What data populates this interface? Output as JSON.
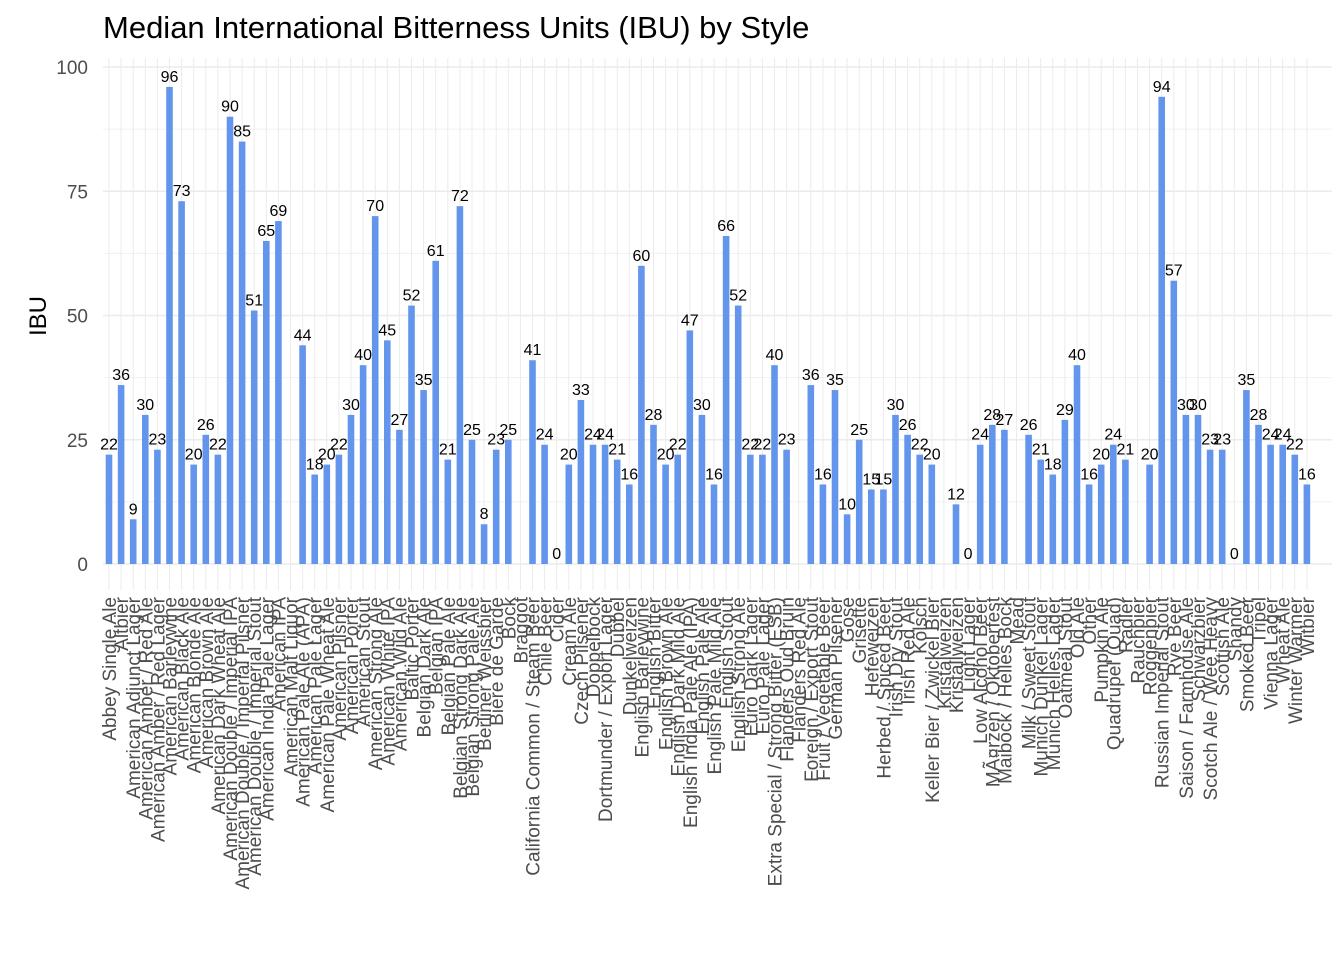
{
  "chart_data": {
    "type": "bar",
    "title": "Median International Bitterness Units (IBU) by Style",
    "xlabel": "",
    "ylabel": "IBU",
    "ylim": [
      0,
      100
    ],
    "yticks": [
      0,
      25,
      50,
      75,
      100
    ],
    "grid": true,
    "legend": "none",
    "bar_color": "#6495ED",
    "categories": [
      "Abbey Single Ale",
      "Altbier",
      "American Adjunct Lager",
      "American Amber / Red Ale",
      "American Amber / Red Lager",
      "American Barleywine",
      "American Black Ale",
      "American Blonde Ale",
      "American Brown Ale",
      "American Dark Wheat Ale",
      "American Double / Imperial IPA",
      "American Double / Imperial Pilsner",
      "American Double / Imperial Stout",
      "American India Pale Lager",
      "American IPA",
      "American Malt Liquor",
      "American Pale Ale (APA)",
      "American Pale Lager",
      "American Pale Wheat Ale",
      "American Pilsner",
      "American Porter",
      "American Stout",
      "American Strong Ale",
      "American White IPA",
      "American Wild Ale",
      "Baltic Porter",
      "Belgian Dark Ale",
      "Belgian IPA",
      "Belgian Pale Ale",
      "Belgian Strong Dark Ale",
      "Belgian Strong Pale Ale",
      "Berliner Weissbier",
      "Bière de Garde",
      "Bock",
      "Braggot",
      "California Common / Steam Beer",
      "Chile Beer",
      "Cider",
      "Cream Ale",
      "Czech Pilsener",
      "Doppelbock",
      "Dortmunder / Export Lager",
      "Dubbel",
      "Dunkelweizen",
      "English Barleywine",
      "English Bitter",
      "English Brown Ale",
      "English Dark Mild Ale",
      "English India Pale Ale (IPA)",
      "English Pale Ale",
      "English Pale Mild Ale",
      "English Stout",
      "English Strong Ale",
      "Euro Dark Lager",
      "Euro Pale Lager",
      "Extra Special / Strong Bitter (ESB)",
      "Flanders Oud Bruin",
      "Flanders Red Ale",
      "Foreign / Export Stout",
      "Fruit / Vegetable Beer",
      "German Pilsener",
      "Gose",
      "Grisette",
      "Hefeweizen",
      "Herbed / Spiced Beer",
      "Irish Dry Stout",
      "Irish Red Ale",
      "Kölsch",
      "Keller Bier / Zwickel Bier",
      "Kristalweizen",
      "Kristallweizen",
      "Light Lager",
      "Low Alcohol Beer",
      "MÃ¤rzen / Oktoberfest",
      "Maibock / Helles Bock",
      "Mead",
      "Milk / Sweet Stout",
      "Munich Dunkel Lager",
      "Munich Helles Lager",
      "Oatmeal Stout",
      "Old Ale",
      "Other",
      "Pumpkin Ale",
      "Quadrupel (Quad)",
      "Radler",
      "Rauchbier",
      "Roggenbier",
      "Russian Imperial Stout",
      "Rye Beer",
      "Saison / Farmhouse Ale",
      "Schwarzbier",
      "Scotch Ale / Wee Heavy",
      "Scottish Ale",
      "Shandy",
      "Smoked Beer",
      "Tripel",
      "Vienna Lager",
      "Wheat Ale",
      "Winter Warmer",
      "Witbier"
    ],
    "values": [
      22,
      36,
      9,
      30,
      23,
      96,
      73,
      20,
      26,
      22,
      90,
      85,
      51,
      65,
      69,
      null,
      44,
      18,
      20,
      22,
      30,
      40,
      70,
      45,
      27,
      52,
      35,
      61,
      21,
      72,
      25,
      8,
      23,
      25,
      null,
      41,
      24,
      0,
      20,
      33,
      24,
      24,
      21,
      16,
      60,
      28,
      20,
      22,
      47,
      30,
      16,
      66,
      52,
      22,
      22,
      40,
      23,
      null,
      36,
      16,
      35,
      10,
      25,
      15,
      15,
      30,
      26,
      22,
      20,
      null,
      12,
      0,
      24,
      28,
      27,
      null,
      26,
      21,
      18,
      29,
      40,
      16,
      20,
      24,
      21,
      null,
      20,
      94,
      57,
      30,
      30,
      23,
      23,
      0,
      35,
      28,
      24,
      24,
      22,
      16
    ],
    "value_labels": [
      "22",
      "36",
      "9",
      "30",
      "23",
      "96",
      "73",
      "20",
      "26",
      "22",
      "90",
      "85",
      "51",
      "65",
      "69",
      "",
      "44",
      "18",
      "20",
      "22",
      "30",
      "40",
      "70",
      "45",
      "27",
      "52",
      "35",
      "61",
      "21",
      "72",
      "25",
      "8",
      "23",
      "25",
      "",
      "41",
      "24",
      "0",
      "20",
      "33",
      "24",
      "24",
      "21",
      "16",
      "60",
      "28",
      "20",
      "22",
      "47",
      "30",
      "16",
      "66",
      "52",
      "22",
      "22",
      "40",
      "23",
      "",
      "36",
      "16",
      "35",
      "10",
      "25",
      "15",
      "15",
      "30",
      "26",
      "22",
      "20",
      "",
      "12",
      "0",
      "24",
      "28",
      "27",
      "",
      "26",
      "21",
      "18",
      "29",
      "40",
      "16",
      "20",
      "24",
      "21",
      "",
      "20",
      "94",
      "57",
      "30",
      "30",
      "23",
      "23",
      "0",
      "35",
      "28",
      "24",
      "24",
      "22",
      "16"
    ]
  }
}
